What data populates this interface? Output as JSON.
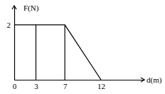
{
  "chart_data": {
    "type": "line",
    "x_label": "d(m)",
    "y_label": "F(N)",
    "x": [
      0,
      3,
      7,
      12
    ],
    "values": [
      2,
      2,
      2,
      0
    ],
    "color": "#000000",
    "xlim": [
      0,
      18
    ],
    "ylim": [
      0,
      2.7
    ],
    "xticks": [
      0,
      3,
      7,
      12
    ],
    "yticks": [
      2
    ],
    "grid": false
  }
}
